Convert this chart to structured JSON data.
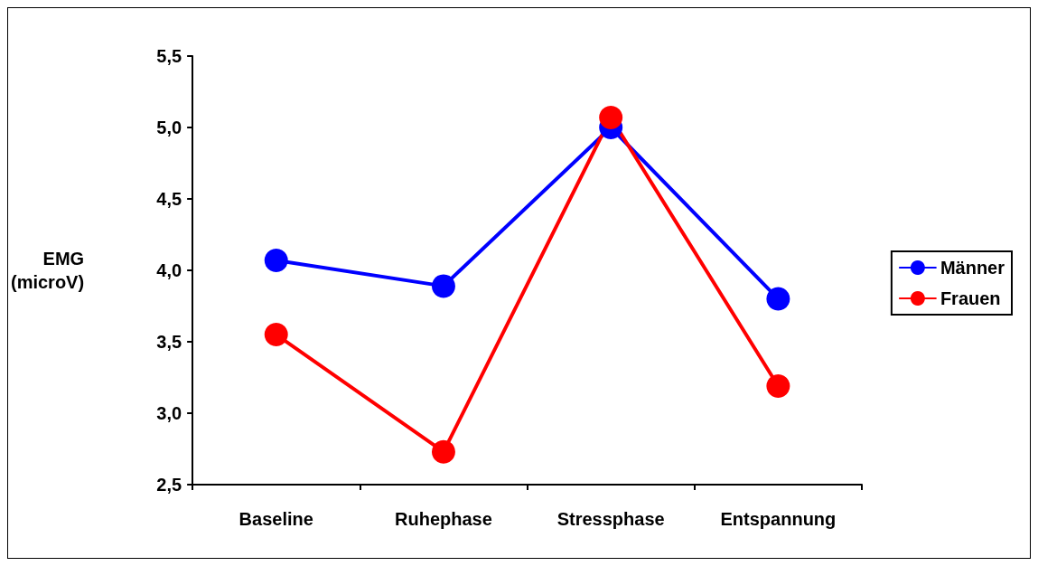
{
  "chart_data": {
    "type": "line",
    "ylabel": "EMG\n(microV)",
    "categories": [
      "Baseline",
      "Ruhephase",
      "Stressphase",
      "Entspannung"
    ],
    "series": [
      {
        "name": "Männer",
        "color": "#0000ff",
        "values": [
          4.07,
          3.89,
          5.0,
          3.8
        ]
      },
      {
        "name": "Frauen",
        "color": "#ff0000",
        "values": [
          3.55,
          2.73,
          5.07,
          3.19
        ]
      }
    ],
    "ylim": [
      2.5,
      5.5
    ],
    "yticks": [
      {
        "value": 2.5,
        "label": "2,5"
      },
      {
        "value": 3,
        "label": "3,0"
      },
      {
        "value": 3.5,
        "label": "3,5"
      },
      {
        "value": 4,
        "label": "4,0"
      },
      {
        "value": 4.5,
        "label": "4,5"
      },
      {
        "value": 5,
        "label": "5,0"
      },
      {
        "value": 5.5,
        "label": "5,5"
      }
    ],
    "grid": false,
    "legend": "right",
    "marker": "circle",
    "line_style": "solid"
  }
}
